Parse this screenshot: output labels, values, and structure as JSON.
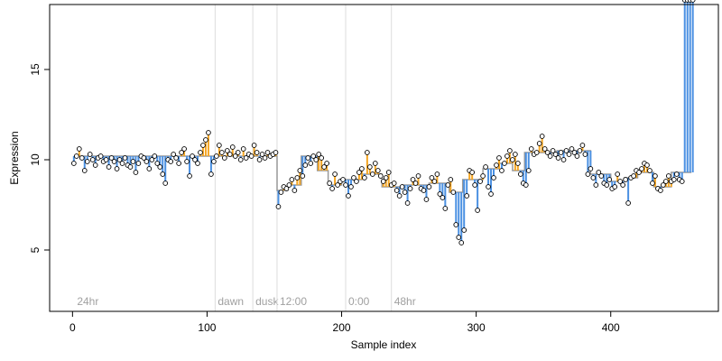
{
  "chart_data": {
    "type": "scatter",
    "title": "",
    "xlabel": "Sample index",
    "ylabel": "Expression",
    "xlim": [
      -17,
      480
    ],
    "ylim": [
      1.6,
      18.6
    ],
    "x_ticks": [
      0,
      100,
      200,
      300,
      400
    ],
    "y_ticks": [
      5,
      10,
      15
    ],
    "baseline_segments": [
      {
        "x_start": 1,
        "x_end": 152,
        "y": 10.2
      },
      {
        "x_start": 152,
        "x_end": 160,
        "y": 8.3
      },
      {
        "x_start": 160,
        "x_end": 170,
        "y": 8.6
      },
      {
        "x_start": 170,
        "x_end": 182,
        "y": 10.2
      },
      {
        "x_start": 182,
        "x_end": 190,
        "y": 9.4
      },
      {
        "x_start": 190,
        "x_end": 200,
        "y": 8.6
      },
      {
        "x_start": 200,
        "x_end": 215,
        "y": 8.9
      },
      {
        "x_start": 215,
        "x_end": 230,
        "y": 9.2
      },
      {
        "x_start": 230,
        "x_end": 245,
        "y": 8.5
      },
      {
        "x_start": 245,
        "x_end": 265,
        "y": 8.6
      },
      {
        "x_start": 265,
        "x_end": 280,
        "y": 8.7
      },
      {
        "x_start": 280,
        "x_end": 290,
        "y": 8.2
      },
      {
        "x_start": 290,
        "x_end": 305,
        "y": 8.9
      },
      {
        "x_start": 305,
        "x_end": 317,
        "y": 9.5
      },
      {
        "x_start": 317,
        "x_end": 327,
        "y": 9.8
      },
      {
        "x_start": 327,
        "x_end": 336,
        "y": 9.4
      },
      {
        "x_start": 336,
        "x_end": 360,
        "y": 10.4
      },
      {
        "x_start": 360,
        "x_end": 385,
        "y": 10.5
      },
      {
        "x_start": 385,
        "x_end": 400,
        "y": 9.2
      },
      {
        "x_start": 400,
        "x_end": 410,
        "y": 8.8
      },
      {
        "x_start": 410,
        "x_end": 420,
        "y": 9.0
      },
      {
        "x_start": 420,
        "x_end": 432,
        "y": 9.3
      },
      {
        "x_start": 432,
        "x_end": 445,
        "y": 8.5
      },
      {
        "x_start": 445,
        "x_end": 460,
        "y": 9.3
      }
    ],
    "vertical_markers": [
      {
        "x": 106,
        "label": "dawn"
      },
      {
        "x": 134,
        "label": "dusk"
      },
      {
        "x": 152,
        "label": "12:00"
      },
      {
        "x": 203,
        "label": "0:00"
      },
      {
        "x": 237,
        "label": "48hr"
      }
    ],
    "corner_label": {
      "x": 2,
      "label": "24hr"
    },
    "points_x": [
      1,
      3,
      5,
      7,
      9,
      11,
      13,
      15,
      17,
      19,
      21,
      23,
      25,
      27,
      29,
      31,
      33,
      35,
      37,
      39,
      41,
      43,
      45,
      47,
      49,
      51,
      53,
      55,
      57,
      59,
      61,
      63,
      65,
      67,
      69,
      71,
      73,
      75,
      77,
      79,
      81,
      83,
      85,
      87,
      89,
      91,
      93,
      95,
      97,
      99,
      101,
      103,
      105,
      107,
      109,
      111,
      113,
      115,
      117,
      119,
      121,
      123,
      125,
      127,
      129,
      131,
      133,
      135,
      137,
      139,
      141,
      143,
      145,
      147,
      149,
      151,
      153,
      155,
      157,
      159,
      161,
      163,
      165,
      167,
      169,
      171,
      173,
      175,
      177,
      179,
      181,
      183,
      185,
      187,
      189,
      191,
      193,
      195,
      197,
      199,
      201,
      203,
      205,
      207,
      209,
      211,
      213,
      215,
      217,
      219,
      221,
      223,
      225,
      227,
      229,
      231,
      233,
      235,
      237,
      239,
      241,
      243,
      245,
      247,
      249,
      251,
      253,
      255,
      257,
      259,
      261,
      263,
      265,
      267,
      269,
      271,
      273,
      275,
      277,
      279,
      281,
      283,
      285,
      287,
      289,
      291,
      293,
      295,
      297,
      299,
      301,
      303,
      305,
      307,
      309,
      311,
      313,
      315,
      317,
      319,
      321,
      323,
      325,
      327,
      329,
      331,
      333,
      335,
      337,
      339,
      341,
      343,
      345,
      347,
      349,
      351,
      353,
      355,
      357,
      359,
      361,
      363,
      365,
      367,
      369,
      371,
      373,
      375,
      377,
      379,
      381,
      383,
      385,
      387,
      389,
      391,
      393,
      395,
      397,
      399,
      401,
      403,
      405,
      407,
      409,
      411,
      413,
      415,
      417,
      419,
      421,
      423,
      425,
      427,
      429,
      431,
      433,
      435,
      437,
      439,
      441,
      443,
      445,
      447,
      449,
      451,
      453,
      455,
      457,
      459,
      461
    ],
    "points_y": [
      9.8,
      10.2,
      10.6,
      10.1,
      9.4,
      9.9,
      10.3,
      10.0,
      9.7,
      10.1,
      10.2,
      9.9,
      10.0,
      9.6,
      10.1,
      9.9,
      9.5,
      10.0,
      9.8,
      10.1,
      9.7,
      9.6,
      9.9,
      9.3,
      9.8,
      10.2,
      10.1,
      9.9,
      9.5,
      10.0,
      10.2,
      9.8,
      9.6,
      9.2,
      8.7,
      10.0,
      9.9,
      10.3,
      10.1,
      9.8,
      10.4,
      10.6,
      9.9,
      9.1,
      10.2,
      10.0,
      9.8,
      10.4,
      10.8,
      11.1,
      11.5,
      9.2,
      9.9,
      10.2,
      10.8,
      10.4,
      10.1,
      10.5,
      10.3,
      10.7,
      10.2,
      10.4,
      10.0,
      10.6,
      10.1,
      10.3,
      10.2,
      10.8,
      10.4,
      10.0,
      10.3,
      10.1,
      10.4,
      10.2,
      10.3,
      10.4,
      7.4,
      8.2,
      8.5,
      8.4,
      8.6,
      8.9,
      8.3,
      9.0,
      9.4,
      9.1,
      9.7,
      10.1,
      9.8,
      10.2,
      10.0,
      10.3,
      10.1,
      9.6,
      9.8,
      8.7,
      8.4,
      9.2,
      8.6,
      8.8,
      8.9,
      8.6,
      8.0,
      8.5,
      9.0,
      8.8,
      9.3,
      9.5,
      9.0,
      10.4,
      9.6,
      9.2,
      9.8,
      9.4,
      9.1,
      8.8,
      9.0,
      9.3,
      8.6,
      8.7,
      8.3,
      8.0,
      8.5,
      8.2,
      7.6,
      8.4,
      8.9,
      8.7,
      9.1,
      8.4,
      8.3,
      7.8,
      8.5,
      9.0,
      8.8,
      9.2,
      8.1,
      7.9,
      7.3,
      8.6,
      8.9,
      8.2,
      6.4,
      5.7,
      5.4,
      6.1,
      8.0,
      9.4,
      9.3,
      8.6,
      7.2,
      8.8,
      9.1,
      9.6,
      8.5,
      8.1,
      9.0,
      9.7,
      10.1,
      9.4,
      9.8,
      10.2,
      10.5,
      10.0,
      10.3,
      9.8,
      9.2,
      8.7,
      8.6,
      9.4,
      10.6,
      10.3,
      10.4,
      10.9,
      11.3,
      10.6,
      10.4,
      10.2,
      10.5,
      10.3,
      10.1,
      10.4,
      10.0,
      10.5,
      10.3,
      10.6,
      10.4,
      10.2,
      10.5,
      10.8,
      10.3,
      9.2,
      9.5,
      9.0,
      8.6,
      9.3,
      9.1,
      8.7,
      8.6,
      8.9,
      8.4,
      8.5,
      9.2,
      8.8,
      8.6,
      8.9,
      7.6,
      9.0,
      9.1,
      9.4,
      9.3,
      9.5,
      9.8,
      9.7,
      9.4,
      8.7,
      9.1,
      8.4,
      8.3,
      8.6,
      8.8,
      9.1,
      8.8,
      8.9,
      9.2,
      8.9,
      8.8
    ]
  }
}
